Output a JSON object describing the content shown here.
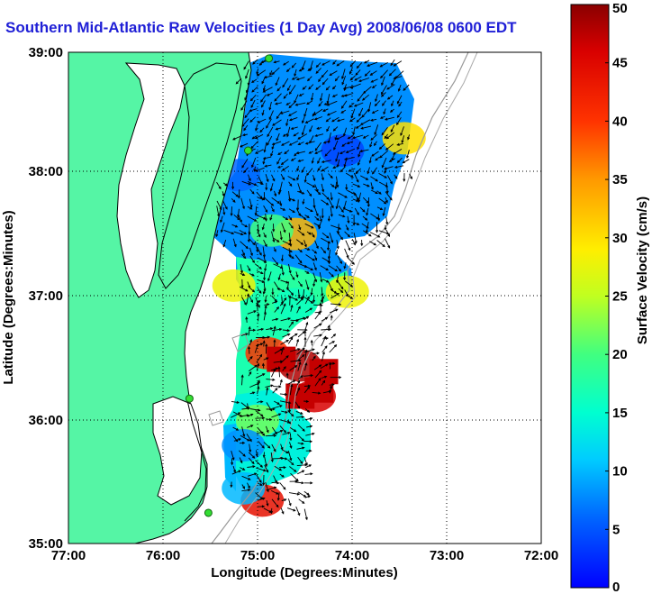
{
  "title": "Southern Mid-Atlantic Raw Velocities (1 Day Avg) 2008/06/08 0600 EDT",
  "xlabel": "Longitude (Degrees:Minutes)",
  "ylabel": "Latitude (Degrees:Minutes)",
  "x_ticks": [
    "77:00",
    "76:00",
    "75:00",
    "74:00",
    "73:00",
    "72:00"
  ],
  "y_ticks": [
    "39:00",
    "38:00",
    "37:00",
    "36:00",
    "35:00"
  ],
  "colorbar": {
    "label": "Surface Velocity (cm/s)",
    "ticks": [
      "50",
      "45",
      "40",
      "35",
      "30",
      "25",
      "20",
      "15",
      "10",
      "5",
      "0"
    ],
    "range": [
      0,
      50
    ]
  },
  "colors": {
    "land": "#55f5a5",
    "title": "#1f1fd6",
    "station": "#33dd33"
  },
  "chart_data": {
    "type": "heatmap",
    "title": "Southern Mid-Atlantic Raw Velocities (1 Day Avg) 2008/06/08 0600 EDT",
    "xlabel": "Longitude (Degrees:Minutes)",
    "ylabel": "Latitude (Degrees:Minutes)",
    "xlim": [
      -77,
      -72
    ],
    "ylim": [
      35,
      39
    ],
    "grid": true,
    "colorbar_range": [
      0,
      50
    ],
    "colorbar_label": "Surface Velocity (cm/s)",
    "cells": [
      {
        "lon": -74.6,
        "lat": 37.52,
        "speed": 33
      },
      {
        "lon": -74.85,
        "lat": 37.55,
        "speed": 20
      },
      {
        "lon": -75.2,
        "lat": 38.0,
        "speed": 6
      },
      {
        "lon": -74.1,
        "lat": 38.2,
        "speed": 4
      },
      {
        "lon": -74.0,
        "lat": 38.75,
        "speed": 8
      },
      {
        "lon": -73.45,
        "lat": 38.3,
        "speed": 30
      },
      {
        "lon": -75.25,
        "lat": 37.1,
        "speed": 28
      },
      {
        "lon": -74.05,
        "lat": 37.05,
        "speed": 28
      },
      {
        "lon": -74.6,
        "lat": 36.95,
        "speed": 16
      },
      {
        "lon": -74.55,
        "lat": 36.45,
        "speed": 48
      },
      {
        "lon": -74.4,
        "lat": 36.2,
        "speed": 46
      },
      {
        "lon": -74.9,
        "lat": 36.55,
        "speed": 40
      },
      {
        "lon": -75.0,
        "lat": 36.0,
        "speed": 22
      },
      {
        "lon": -75.15,
        "lat": 35.8,
        "speed": 8
      },
      {
        "lon": -74.95,
        "lat": 35.35,
        "speed": 44
      },
      {
        "lon": -75.15,
        "lat": 35.45,
        "speed": 10
      }
    ],
    "stations": [
      {
        "lon": -74.88,
        "lat": 38.95
      },
      {
        "lon": -75.1,
        "lat": 38.2
      },
      {
        "lon": -75.72,
        "lat": 36.18
      },
      {
        "lon": -75.52,
        "lat": 35.25
      }
    ]
  }
}
